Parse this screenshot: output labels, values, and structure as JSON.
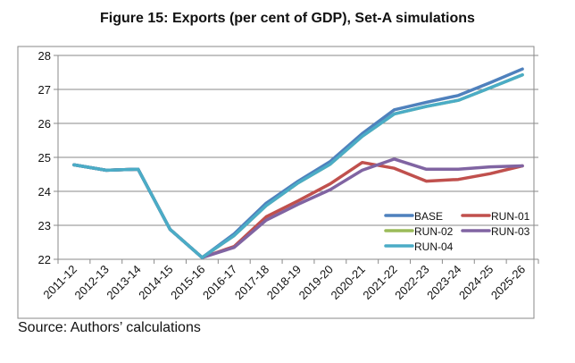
{
  "chart_data": {
    "type": "line",
    "title": "Figure 15: Exports (per cent of GDP), Set-A simulations",
    "xlabel": "",
    "ylabel": "",
    "ylim": [
      22,
      28
    ],
    "yticks": [
      22,
      23,
      24,
      25,
      26,
      27,
      28
    ],
    "grid": true,
    "legend_position": "bottom-right inside",
    "categories": [
      "2011-12",
      "2012-13",
      "2013-14",
      "2014-15",
      "2015-16",
      "2016-17",
      "2017-18",
      "2018-19",
      "2019-20",
      "2020-21",
      "2021-22",
      "2022-23",
      "2023-24",
      "2024-25",
      "2025-26"
    ],
    "series": [
      {
        "name": "BASE",
        "color": "#4F81BD",
        "values": [
          24.78,
          24.62,
          24.65,
          22.88,
          22.05,
          22.75,
          23.65,
          24.3,
          24.88,
          25.7,
          26.4,
          26.62,
          26.82,
          27.2,
          27.6
        ]
      },
      {
        "name": "RUN-01",
        "color": "#C0504D",
        "values": [
          24.78,
          24.62,
          24.65,
          22.88,
          22.05,
          22.38,
          23.25,
          23.72,
          24.22,
          24.85,
          24.68,
          24.3,
          24.35,
          24.52,
          24.75
        ]
      },
      {
        "name": "RUN-02",
        "color": "#9BBB59",
        "values": [
          24.78,
          24.62,
          24.65,
          22.88,
          22.05,
          22.7,
          23.58,
          24.25,
          24.8,
          25.62,
          26.28,
          26.5,
          26.68,
          27.05,
          27.43
        ]
      },
      {
        "name": "RUN-03",
        "color": "#8064A2",
        "values": [
          24.78,
          24.62,
          24.65,
          22.88,
          22.05,
          22.35,
          23.15,
          23.62,
          24.05,
          24.62,
          24.95,
          24.65,
          24.65,
          24.72,
          24.75
        ]
      },
      {
        "name": "RUN-04",
        "color": "#4BACC6",
        "values": [
          24.78,
          24.62,
          24.65,
          22.88,
          22.05,
          22.7,
          23.58,
          24.25,
          24.8,
          25.62,
          26.28,
          26.5,
          26.68,
          27.05,
          27.43
        ]
      }
    ]
  },
  "source": "Source: Authors’ calculations"
}
